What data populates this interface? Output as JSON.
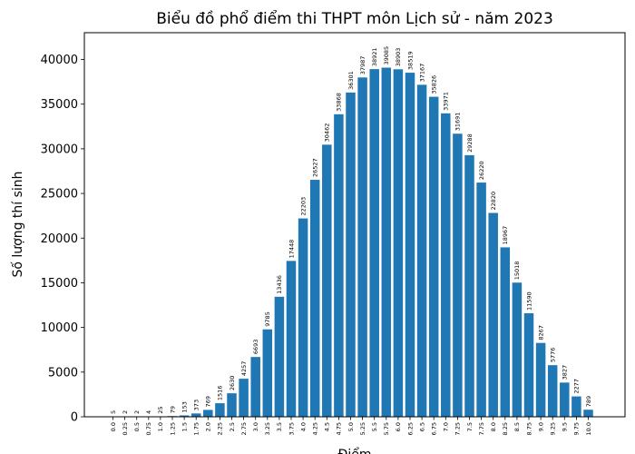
{
  "chart_data": {
    "type": "bar",
    "title": "Biểu đồ phổ điểm thi THPT môn Lịch sử - năm 2023",
    "xlabel": "Điểm",
    "ylabel": "Số lượng thí sinh",
    "ylim": [
      0,
      43000
    ],
    "yticks": [
      0,
      5000,
      10000,
      15000,
      20000,
      25000,
      30000,
      35000,
      40000
    ],
    "bar_color": "#1f77b4",
    "grid": false,
    "categories": [
      "0.0",
      "0.25",
      "0.5",
      "0.75",
      "1.0",
      "1.25",
      "1.5",
      "1.75",
      "2.0",
      "2.25",
      "2.5",
      "2.75",
      "3.0",
      "3.25",
      "3.5",
      "3.75",
      "4.0",
      "4.25",
      "4.5",
      "4.75",
      "5.0",
      "5.25",
      "5.5",
      "5.75",
      "6.0",
      "6.25",
      "6.5",
      "6.75",
      "7.0",
      "7.25",
      "7.5",
      "7.75",
      "8.0",
      "8.25",
      "8.5",
      "8.75",
      "9.0",
      "9.25",
      "9.5",
      "9.75",
      "10.0"
    ],
    "values": [
      5,
      2,
      2,
      4,
      25,
      79,
      153,
      373,
      769,
      1516,
      2630,
      4257,
      6693,
      9785,
      13436,
      17448,
      22203,
      26527,
      30462,
      33868,
      36301,
      37987,
      38921,
      39085,
      38903,
      38519,
      37167,
      35826,
      33971,
      31691,
      29288,
      26220,
      22820,
      18967,
      15018,
      11590,
      8267,
      5776,
      3827,
      2277,
      789
    ]
  }
}
